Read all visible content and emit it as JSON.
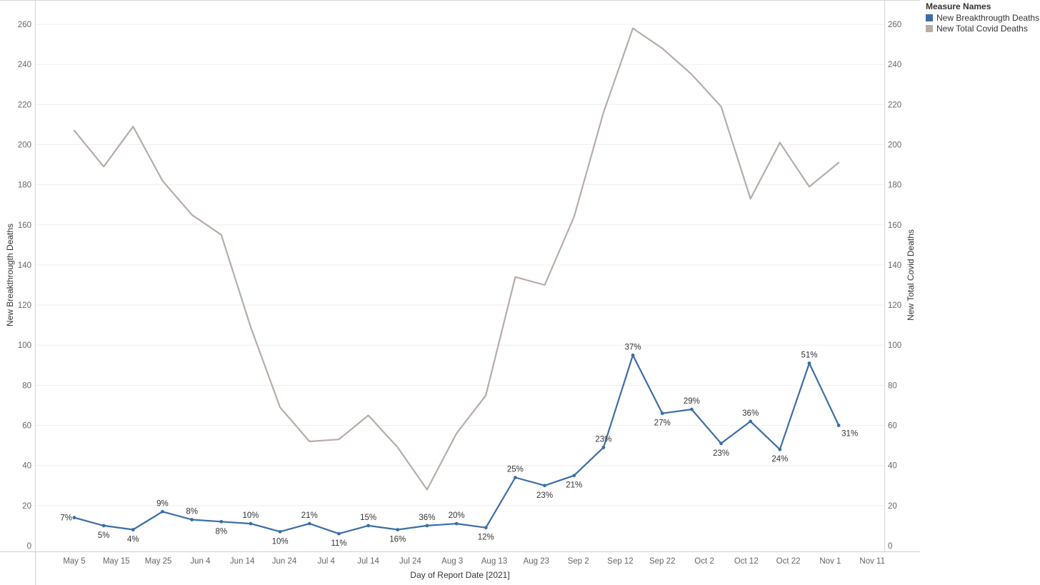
{
  "chart_data": {
    "type": "line",
    "xlabel": "Day of Report Date [2021]",
    "ylabel": "New Breakthrougth Deaths",
    "y2label": "New Total Covid Deaths",
    "ylim": [
      0,
      270
    ],
    "y2lim": [
      0,
      270
    ],
    "yticks": [
      0,
      20,
      40,
      60,
      80,
      100,
      120,
      140,
      160,
      180,
      200,
      220,
      240,
      260
    ],
    "xticks": [
      "May 5",
      "May 15",
      "May 25",
      "Jun 4",
      "Jun 14",
      "Jun 24",
      "Jul 4",
      "Jul 14",
      "Jul 24",
      "Aug 3",
      "Aug 13",
      "Aug 23",
      "Sep 2",
      "Sep 12",
      "Sep 22",
      "Oct 2",
      "Oct 12",
      "Oct 22",
      "Nov 1",
      "Nov 11"
    ],
    "legend": {
      "title": "Measure Names",
      "position": "top-right"
    },
    "x": [
      "2021-05-05",
      "2021-05-12",
      "2021-05-19",
      "2021-05-26",
      "2021-06-02",
      "2021-06-09",
      "2021-06-16",
      "2021-06-23",
      "2021-06-30",
      "2021-07-07",
      "2021-07-14",
      "2021-07-21",
      "2021-07-28",
      "2021-08-04",
      "2021-08-11",
      "2021-08-18",
      "2021-08-25",
      "2021-09-01",
      "2021-09-08",
      "2021-09-15",
      "2021-09-22",
      "2021-09-29",
      "2021-10-06",
      "2021-10-13",
      "2021-10-20",
      "2021-10-27",
      "2021-11-03"
    ],
    "series": [
      {
        "name": "New Breakthrougth Deaths",
        "color": "#3b6ea5",
        "axis": "left",
        "values": [
          14,
          10,
          8,
          17,
          13,
          12,
          11,
          7,
          11,
          6,
          10,
          8,
          10,
          11,
          9,
          34,
          30,
          35,
          49,
          95,
          66,
          68,
          51,
          62,
          48,
          91,
          60
        ],
        "labels": [
          "7%",
          "5%",
          "4%",
          "9%",
          "8%",
          "8%",
          "10%",
          "10%",
          "21%",
          "11%",
          "15%",
          "16%",
          "36%",
          "20%",
          "12%",
          "25%",
          "23%",
          "21%",
          "23%",
          "37%",
          "27%",
          "29%",
          "23%",
          "36%",
          "24%",
          "51%",
          "31%"
        ]
      },
      {
        "name": "New Total Covid Deaths",
        "color": "#b7aca7",
        "axis": "right",
        "values": [
          207,
          189,
          209,
          182,
          165,
          155,
          109,
          69,
          52,
          53,
          65,
          49,
          28,
          56,
          75,
          134,
          130,
          164,
          216,
          258,
          248,
          235,
          219,
          173,
          201,
          179,
          191
        ]
      }
    ]
  }
}
